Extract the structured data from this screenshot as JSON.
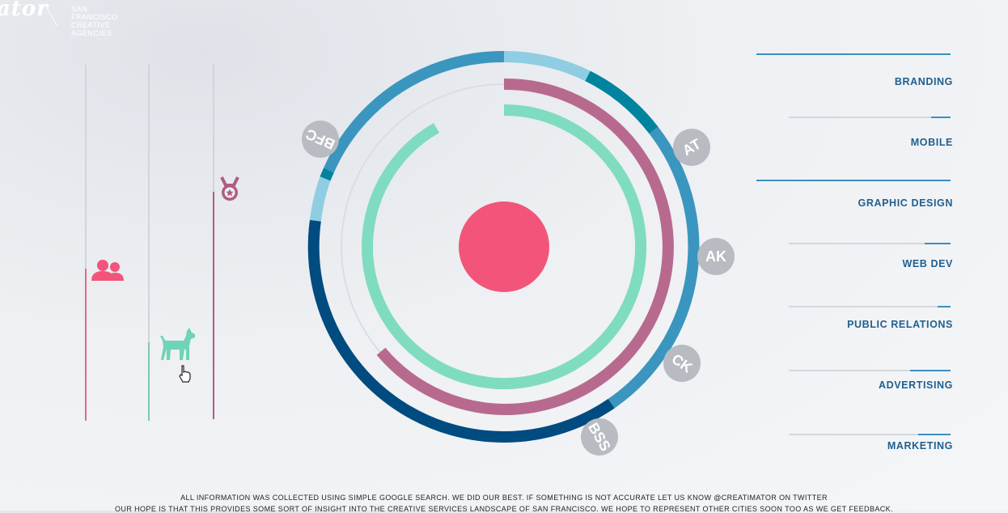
{
  "brand": {
    "logo_text": "ator",
    "sub_line1": "SAN FRANCISCO",
    "sub_line2": "CREATIVE AGENCIES"
  },
  "icons": {
    "people": "people-icon",
    "dog": "dog-icon",
    "medal": "medal-icon",
    "cursor": "hand-cursor-icon"
  },
  "colors": {
    "pink": "#f2547a",
    "teal": "#7fdcc0",
    "magenta": "#b86a8e",
    "light_blue": "#8fcde2",
    "blue": "#3a96be",
    "dark_blue": "#004b7f",
    "dark_teal": "#00839e"
  },
  "agency_tags": [
    "BFC",
    "AT",
    "AK",
    "CK",
    "BSS"
  ],
  "categories": [
    {
      "label": "BRANDING",
      "fill": 1.0
    },
    {
      "label": "MOBILE",
      "fill": 0.12
    },
    {
      "label": "GRAPHIC DESIGN",
      "fill": 1.0
    },
    {
      "label": "WEB DEV",
      "fill": 0.15
    },
    {
      "label": "PUBLIC RELATIONS",
      "fill": 0.08
    },
    {
      "label": "ADVERTISING",
      "fill": 0.25
    },
    {
      "label": "MARKETING",
      "fill": 0.2
    }
  ],
  "footer": {
    "line1": "ALL INFORMATION WAS COLLECTED USING SIMPLE GOOGLE SEARCH. WE DID OUR BEST. IF SOMETHING IS NOT ACCURATE LET US KNOW @CREATIMATOR ON TWITTER",
    "line2": "OUR HOPE IS THAT THIS PROVIDES SOME SORT OF INSIGHT INTO THE CREATIVE SERVICES LANDSCAPE OF SAN FRANCISCO. WE HOPE TO REPRESENT OTHER CITIES SOON TOO AS WE GET FEEDBACK."
  }
}
